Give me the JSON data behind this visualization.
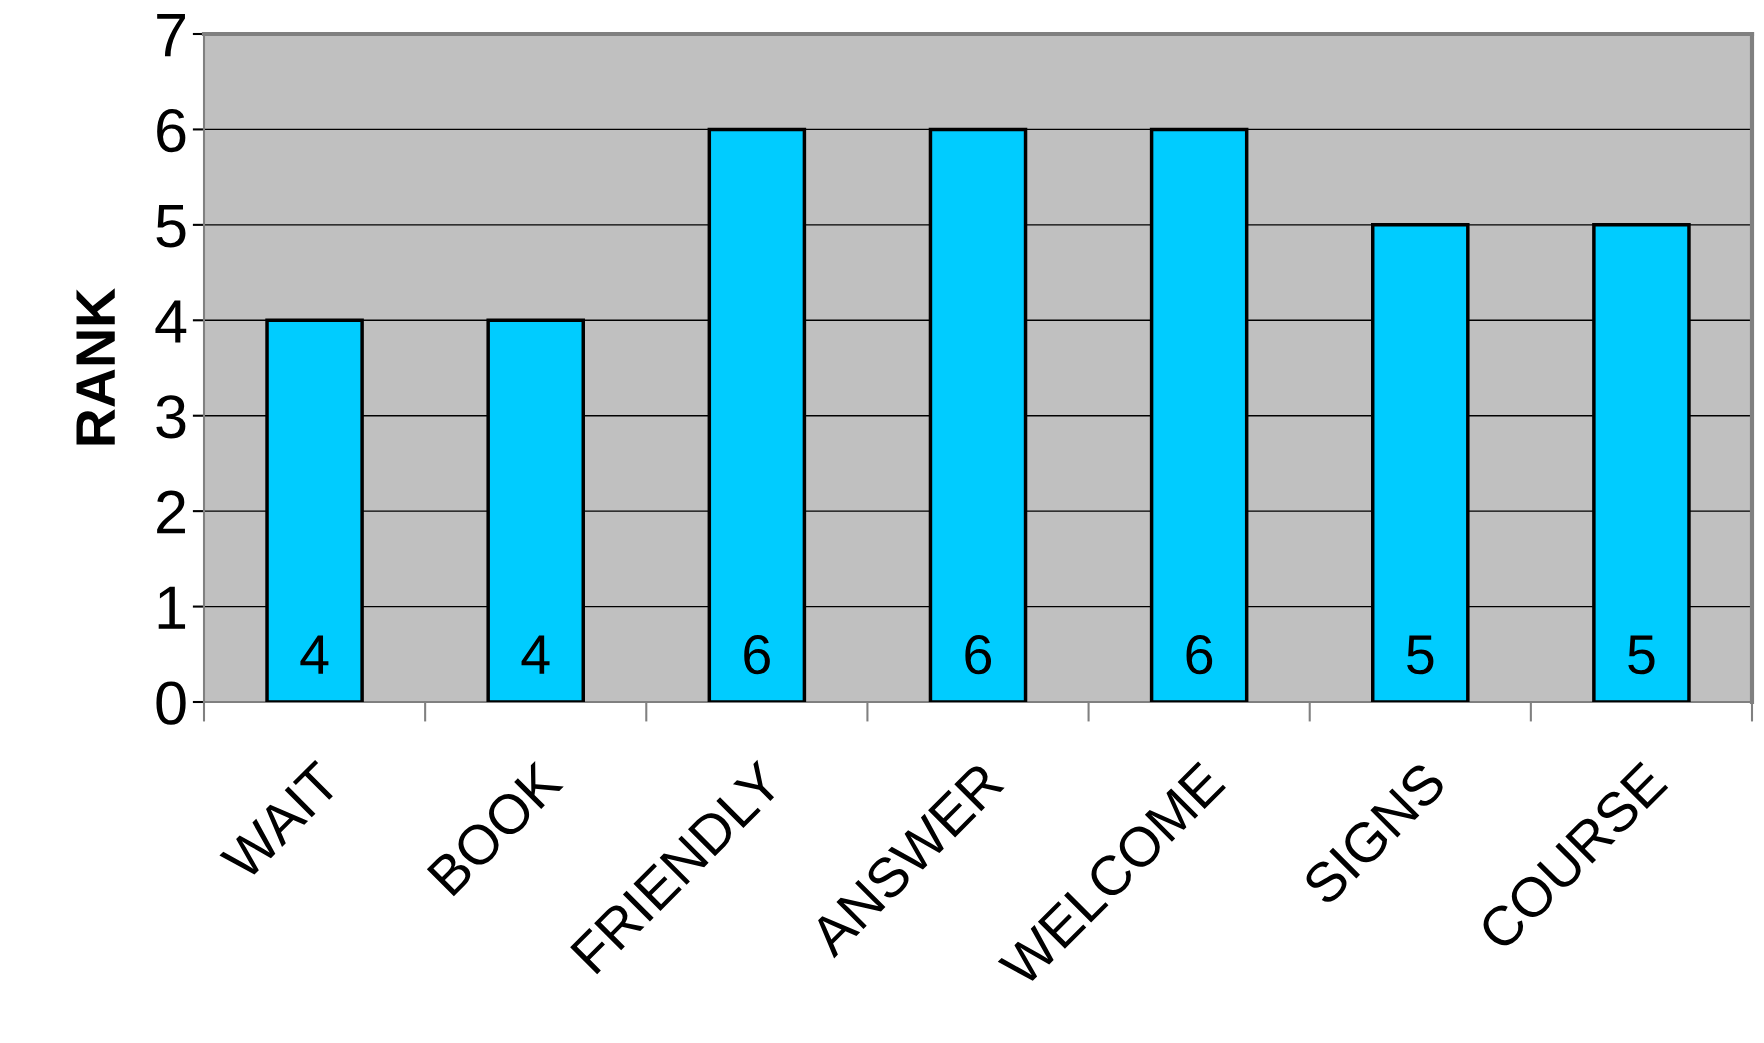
{
  "chart_data": {
    "type": "bar",
    "ylabel": "RANK",
    "categories": [
      "WAIT",
      "BOOK",
      "FRIENDLY",
      "ANSWER",
      "WELCOME",
      "SIGNS",
      "COURSE"
    ],
    "values": [
      4,
      4,
      6,
      6,
      6,
      5,
      5
    ],
    "color": "#00ccff",
    "ylim": [
      0,
      7
    ],
    "yticks": [
      0,
      1,
      2,
      3,
      4,
      5,
      6,
      7
    ],
    "grid": "y",
    "data_labels": true
  }
}
